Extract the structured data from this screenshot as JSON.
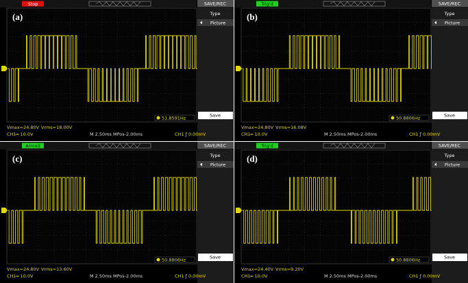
{
  "panels": [
    {
      "label": "(a)",
      "status": "Stop",
      "menu": {
        "title": "SAVE/REC",
        "type": "Type",
        "option": "Picture",
        "save": "Save"
      },
      "frequency": "51.8591Hz",
      "vmax": "Vmax=24.80V",
      "vrms": "Vrms=18.00V",
      "ch1_scale": "CH1═ 10.0V",
      "timebase": "M 2.50ms",
      "mpos": "MPos-2.00ms",
      "trigger": "CH1 ƒ 0.00mV"
    },
    {
      "label": "(b)",
      "status": "Trig'd",
      "menu": {
        "title": "SAVE/REC",
        "type": "Type",
        "option": "Picture",
        "save": "Save"
      },
      "frequency": "50.8806Hz",
      "vmax": "Vmax=24.80V",
      "vrms": "Vrms=16.08V",
      "ch1_scale": "CH1═ 10.0V",
      "timebase": "M 2.50ms",
      "mpos": "MPos-2.00ms",
      "trigger": "CH1 ƒ 0.00mV"
    },
    {
      "label": "(c)",
      "status": "Armed",
      "menu": {
        "title": "SAVE/REC",
        "type": "Type",
        "option": "Picture",
        "save": "Save"
      },
      "frequency": "50.8806Hz",
      "vmax": "Vmax=24.80V",
      "vrms": "Vrms=13.60V",
      "ch1_scale": "CH1═ 10.0V",
      "timebase": "M 2.50ms",
      "mpos": "MPos-2.00ms",
      "trigger": "CH1 ƒ 0.00mV"
    },
    {
      "label": "(d)",
      "status": "Trig'd",
      "menu": {
        "title": "SAVE/REC",
        "type": "Type",
        "option": "Picture",
        "save": "Save"
      },
      "frequency": "50.8806Hz",
      "vmax": "Vmax=24.40V",
      "vrms": "Vrms=9.20V",
      "ch1_scale": "CH1═ 10.0V",
      "timebase": "M 2.50ms",
      "mpos": "MPos-2.00ms",
      "trigger": "CH1 ƒ 0.00mV"
    }
  ]
}
